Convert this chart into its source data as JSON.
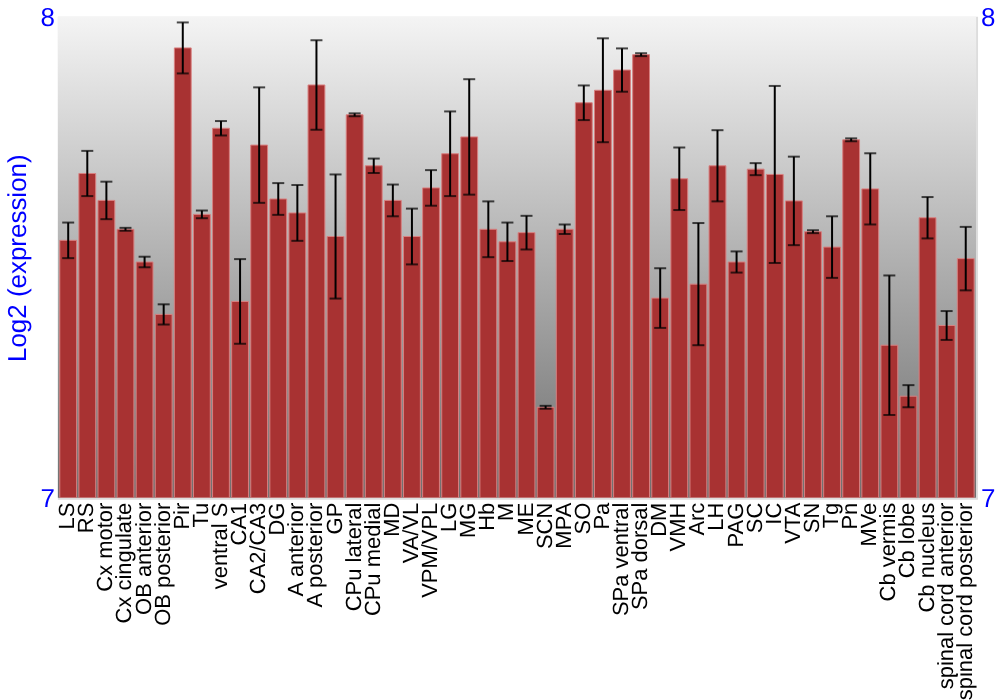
{
  "chart_data": {
    "type": "bar",
    "ylabel": "Log2 (expression)",
    "color": "#a83232",
    "categories": [
      "LS",
      "RS",
      "Cx motor",
      "Cx cingulate",
      "OB anterior",
      "OB posterior",
      "Pir",
      "Tu",
      "ventral S",
      "CA1",
      "CA2/CA3",
      "DG",
      "A anterior",
      "A posterior",
      "GP",
      "CPu lateral",
      "CPu medial",
      "MD",
      "VA/VL",
      "VPM/VPL",
      "LG",
      "MG",
      "Hb",
      "M",
      "ME",
      "SCN",
      "MPA",
      "SO",
      "Pa",
      "SPa ventral",
      "SPa dorsal",
      "DM",
      "VMH",
      "Arc",
      "LH",
      "PAG",
      "SC",
      "IC",
      "VTA",
      "SN",
      "Tg",
      "Pn",
      "MVe",
      "Cb vermis",
      "Cb lobe",
      "Cb nucleus",
      "spinal cord anterior",
      "spinal cord posterior"
    ],
    "values": [
      7.535,
      7.674,
      7.618,
      7.558,
      7.49,
      7.381,
      7.935,
      7.589,
      7.768,
      7.408,
      7.733,
      7.621,
      7.592,
      7.858,
      7.543,
      7.796,
      7.69,
      7.618,
      7.543,
      7.644,
      7.715,
      7.75,
      7.558,
      7.532,
      7.551,
      7.188,
      7.558,
      7.821,
      7.847,
      7.889,
      7.921,
      7.415,
      7.663,
      7.444,
      7.69,
      7.49,
      7.683,
      7.672,
      7.617,
      7.553,
      7.521,
      7.744,
      7.642,
      7.317,
      7.211,
      7.582,
      7.358,
      7.497
    ],
    "errors": [
      0.037,
      0.047,
      0.039,
      0.003,
      0.011,
      0.021,
      0.053,
      0.008,
      0.015,
      0.088,
      0.12,
      0.033,
      0.058,
      0.093,
      0.129,
      0.003,
      0.015,
      0.033,
      0.058,
      0.037,
      0.088,
      0.12,
      0.058,
      0.04,
      0.035,
      0.003,
      0.01,
      0.036,
      0.108,
      0.045,
      0.003,
      0.062,
      0.065,
      0.127,
      0.074,
      0.022,
      0.0125,
      0.184,
      0.092,
      0.003,
      0.064,
      0.003,
      0.074,
      0.145,
      0.023,
      0.043,
      0.03,
      0.066
    ],
    "ylim": [
      7,
      8
    ],
    "yticks": [
      7,
      8
    ],
    "y2lim": [
      7,
      8
    ],
    "y2ticks": [
      7,
      8
    ]
  }
}
